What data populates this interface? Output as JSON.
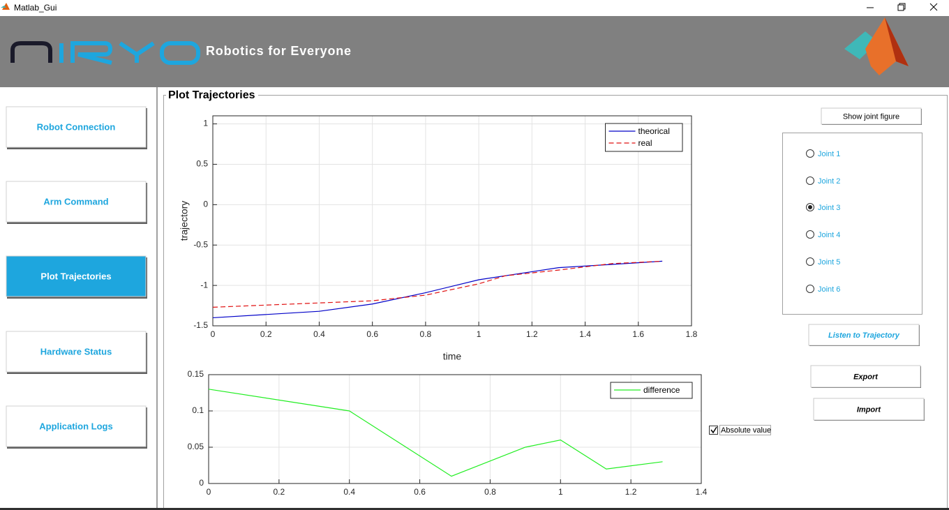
{
  "window": {
    "title": "Matlab_Gui"
  },
  "header": {
    "tagline": "Robotics for Everyone"
  },
  "sidebar": {
    "buttons": [
      "Robot Connection",
      "Arm Command",
      "Plot Trajectories",
      "Hardware Status",
      "Application Logs"
    ],
    "active": 2
  },
  "panel": {
    "title": "Plot Trajectories"
  },
  "controls": {
    "show_joint_figure": "Show joint figure",
    "joints": [
      "Joint 1",
      "Joint 2",
      "Joint 3",
      "Joint 4",
      "Joint 5",
      "Joint 6"
    ],
    "selected_joint": 2,
    "listen": "Listen to Trajectory",
    "export": "Export",
    "import": "Import",
    "absolute_value": {
      "label": "Absolute value",
      "checked": true
    }
  },
  "chart_data": [
    {
      "type": "line",
      "xlabel": "time",
      "ylabel": "trajectory",
      "xlim": [
        0,
        1.8
      ],
      "xticks": [
        0,
        0.2,
        0.4,
        0.6,
        0.8,
        1,
        1.2,
        1.4,
        1.6,
        1.8
      ],
      "ylim": [
        -1.5,
        1.1
      ],
      "yticks": [
        -1.5,
        -1,
        -0.5,
        0,
        0.5,
        1
      ],
      "grid": true,
      "legend": "top-right",
      "series": [
        {
          "name": "theorical",
          "color": "#0000c8",
          "line_style": "solid",
          "x": [
            0,
            0.4,
            0.6,
            0.8,
            1,
            1.2,
            1.3,
            1.5,
            1.69
          ],
          "values": [
            -1.4,
            -1.32,
            -1.23,
            -1.09,
            -0.93,
            -0.83,
            -0.78,
            -0.74,
            -0.7
          ]
        },
        {
          "name": "real",
          "color": "#e01010",
          "line_style": "dashed",
          "x": [
            0,
            0.6,
            0.8,
            1,
            1.1,
            1.3,
            1.5,
            1.69
          ],
          "values": [
            -1.27,
            -1.19,
            -1.12,
            -0.98,
            -0.88,
            -0.81,
            -0.73,
            -0.7
          ]
        }
      ]
    },
    {
      "type": "line",
      "xlim": [
        0,
        1.4
      ],
      "xticks": [
        0,
        0.2,
        0.4,
        0.6,
        0.8,
        1,
        1.2,
        1.4
      ],
      "ylim": [
        0,
        0.15
      ],
      "yticks": [
        0,
        0.05,
        0.1,
        0.15
      ],
      "grid": true,
      "legend": "top-right",
      "series": [
        {
          "name": "difference",
          "color": "#22ee22",
          "line_style": "solid",
          "x": [
            0,
            0.4,
            0.69,
            0.9,
            1,
            1.13,
            1.29
          ],
          "values": [
            0.13,
            0.1,
            0.01,
            0.05,
            0.06,
            0.02,
            0.03
          ]
        }
      ]
    }
  ]
}
